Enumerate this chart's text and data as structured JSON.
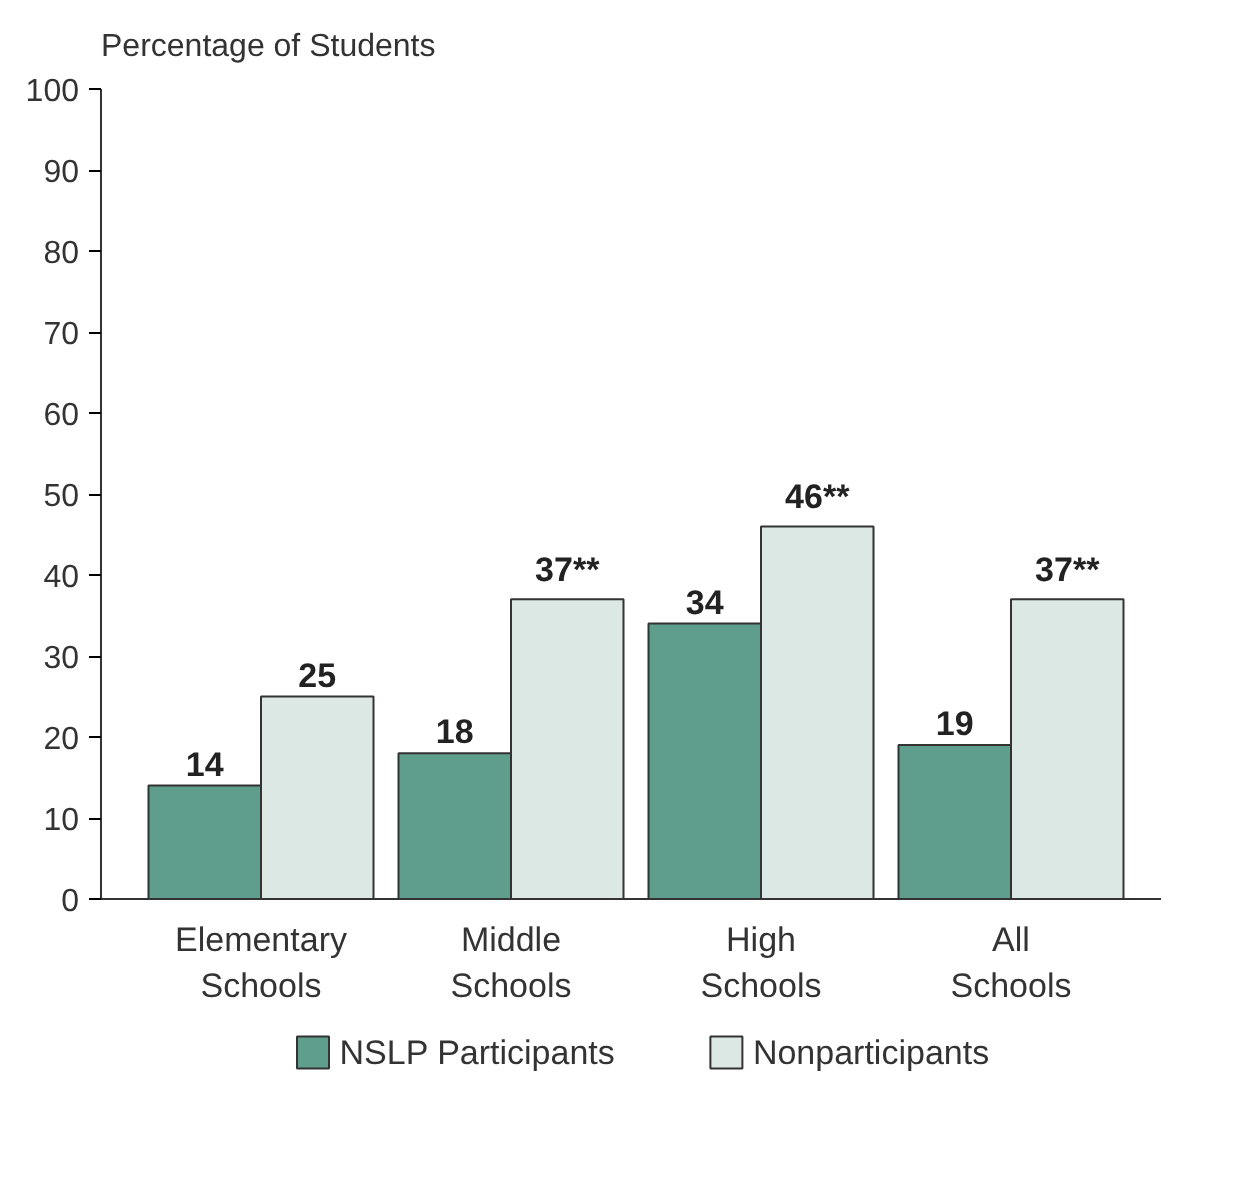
{
  "chart_data": {
    "type": "bar",
    "ylabel": "Percentage of Students",
    "categories": [
      "Elementary\nSchools",
      "Middle\nSchools",
      "High\nSchools",
      "All\nSchools"
    ],
    "series": [
      {
        "name": "NSLP Participants",
        "color": "#5f9e8c",
        "values": [
          14,
          18,
          34,
          19
        ],
        "value_labels": [
          "14",
          "18",
          "34",
          "19"
        ]
      },
      {
        "name": "Nonparticipants",
        "color": "#dce8e4",
        "values": [
          25,
          37,
          46,
          37
        ],
        "value_labels": [
          "25",
          "37**",
          "46**",
          "37**"
        ]
      }
    ],
    "ylim": [
      0,
      100
    ],
    "yticks": [
      0,
      10,
      20,
      30,
      40,
      50,
      60,
      70,
      80,
      90,
      100
    ],
    "grid": false,
    "legend": "bottom"
  }
}
